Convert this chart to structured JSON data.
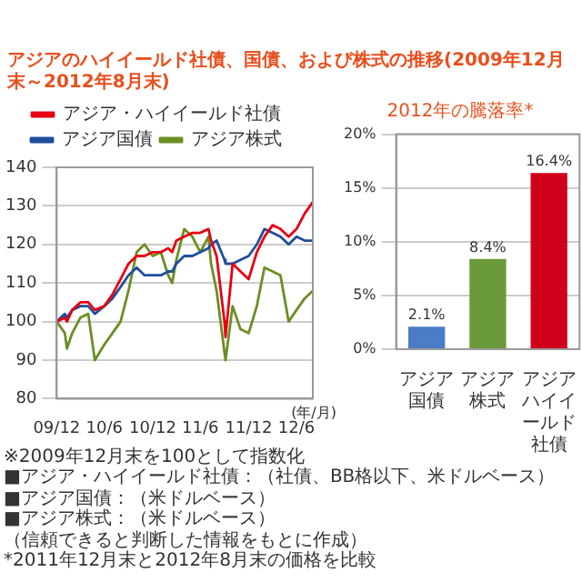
{
  "chart_data": [
    {
      "type": "line",
      "title": "アジアのハイイールド社債、国債、および株式の推移(2009年12月末～2012年8月末)",
      "xlabel": "(年/月)",
      "x": [
        "2009-12-31",
        "2010-01-31",
        "2010-02-08",
        "2010-02-28",
        "2010-03-31",
        "2010-04-30",
        "2010-05-25",
        "2010-06-30",
        "2010-07-31",
        "2010-08-31",
        "2010-09-30",
        "2010-10-31",
        "2010-11-30",
        "2010-12-31",
        "2011-01-31",
        "2011-02-28",
        "2011-03-15",
        "2011-03-31",
        "2011-04-30",
        "2011-05-31",
        "2011-06-30",
        "2011-07-31",
        "2011-08-10",
        "2011-08-31",
        "2011-09-30",
        "2011-10-04",
        "2011-10-31",
        "2011-11-30",
        "2011-12-31",
        "2012-01-31",
        "2012-02-29",
        "2012-03-31",
        "2012-04-30",
        "2012-05-31",
        "2012-06-30",
        "2012-07-31",
        "2012-08-31"
      ],
      "series": [
        {
          "name": "アジア・ハイイールド社債",
          "color": "#e60012",
          "values": [
            100,
            101,
            100,
            103,
            105,
            105,
            103,
            104,
            107,
            111,
            115,
            117,
            117,
            118,
            118,
            119,
            118,
            121,
            122,
            123,
            123,
            124,
            121,
            117,
            100,
            96,
            115,
            113,
            111,
            118,
            122,
            125,
            124,
            122,
            124,
            128,
            131
          ]
        },
        {
          "name": "アジア国債",
          "color": "#1f4e9c",
          "values": [
            100,
            102,
            101,
            103,
            104,
            104,
            102,
            104,
            106,
            109,
            112,
            114,
            112,
            112,
            112,
            113,
            113,
            115,
            117,
            117,
            118,
            119,
            120,
            121,
            116,
            115,
            115,
            116,
            117,
            120,
            124,
            123,
            122,
            120,
            122,
            121,
            121
          ]
        },
        {
          "name": "アジア株式",
          "color": "#6b8e23",
          "values": [
            100,
            97,
            93,
            97,
            101,
            102,
            90,
            94,
            97,
            100,
            108,
            118,
            120,
            117,
            118,
            112,
            110,
            116,
            124,
            122,
            118,
            122,
            115,
            108,
            92,
            90,
            104,
            98,
            97,
            104,
            114,
            113,
            112,
            100,
            103,
            106,
            108
          ]
        }
      ],
      "xlim": [
        "2009-12-31",
        "2012-08-31"
      ],
      "xticks": [
        {
          "value": "2009-12-31",
          "label": "09/12"
        },
        {
          "value": "2010-06-30",
          "label": "10/6"
        },
        {
          "value": "2010-12-31",
          "label": "10/12"
        },
        {
          "value": "2011-06-30",
          "label": "11/6"
        },
        {
          "value": "2011-12-31",
          "label": "11/12"
        },
        {
          "value": "2012-06-30",
          "label": "12/6"
        }
      ],
      "ylim": [
        80,
        140
      ],
      "yticks": [
        80,
        90,
        100,
        110,
        120,
        130,
        140
      ],
      "grid": "y",
      "legend": "top",
      "marker": "none",
      "line_style": "solid",
      "annotations": [
        "※2009年12月末を100として指数化",
        "■アジア・ハイイールド社債：（社債、BB格以下、米ドルベース）",
        "■アジア国債：（米ドルベース）",
        "■アジア株式：（米ドルベース）",
        "（信頼できると判断した情報をもとに作成）"
      ]
    },
    {
      "type": "bar",
      "title": "2012年の騰落率*",
      "categories": [
        "アジア国債",
        "アジア株式",
        "アジアハイイールド社債"
      ],
      "values": [
        2.1,
        8.4,
        16.4
      ],
      "colors": [
        "#4a7cc7",
        "#6a9a3a",
        "#d0021b"
      ],
      "value_labels": [
        "2.1%",
        "8.4%",
        "16.4%"
      ],
      "ylim": [
        0,
        20
      ],
      "yticks": [
        {
          "value": 0,
          "label": "0%"
        },
        {
          "value": 5,
          "label": "5%"
        },
        {
          "value": 10,
          "label": "10%"
        },
        {
          "value": 15,
          "label": "15%"
        },
        {
          "value": 20,
          "label": "20%"
        }
      ],
      "grid": "y",
      "legend": false,
      "annotations": [
        "*2011年12月末と2012年8月末の価格を比較"
      ]
    }
  ]
}
